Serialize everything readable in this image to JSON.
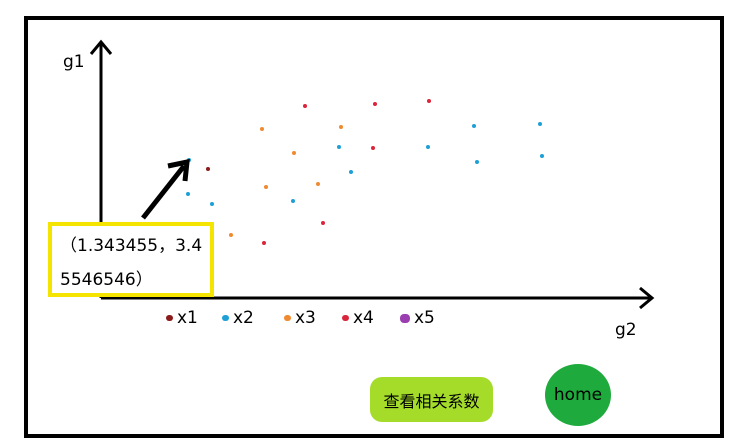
{
  "chart_data": {
    "type": "scatter",
    "xlabel": "g2",
    "ylabel": "g1",
    "series": [
      {
        "name": "x1",
        "color": "#8b1a1a",
        "points": []
      },
      {
        "name": "x2",
        "color": "#1ea0d6",
        "points": []
      },
      {
        "name": "x3",
        "color": "#f08a30",
        "points": []
      },
      {
        "name": "x4",
        "color": "#d9263c",
        "points": []
      },
      {
        "name": "x5",
        "color": "#9b3fb0",
        "points": []
      }
    ],
    "grid": false,
    "legend_position": "bottom"
  },
  "tooltip": {
    "text": "（1.343455，3.45546546）"
  },
  "buttons": {
    "correlation_label": "查看相关系数",
    "home_label": "home"
  },
  "legend": {
    "items": [
      "x1",
      "x2",
      "x3",
      "x4",
      "x5"
    ]
  }
}
